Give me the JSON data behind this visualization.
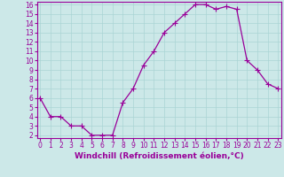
{
  "x": [
    0,
    1,
    2,
    3,
    4,
    5,
    6,
    7,
    8,
    9,
    10,
    11,
    12,
    13,
    14,
    15,
    16,
    17,
    18,
    19,
    20,
    21,
    22,
    23
  ],
  "y": [
    6,
    4,
    4,
    3,
    3,
    2,
    2,
    2,
    5.5,
    7,
    9.5,
    11,
    13,
    14,
    15,
    16,
    16,
    15.5,
    15.8,
    15.5,
    10,
    9,
    7.5,
    7
  ],
  "line_color": "#990099",
  "marker": "+",
  "marker_size": 4,
  "linewidth": 0.9,
  "xlabel": "Windchill (Refroidissement éolien,°C)",
  "xlabel_fontsize": 6.5,
  "ylim_min": 2,
  "ylim_max": 16,
  "xlim_min": 0,
  "xlim_max": 23,
  "yticks": [
    2,
    3,
    4,
    5,
    6,
    7,
    8,
    9,
    10,
    11,
    12,
    13,
    14,
    15,
    16
  ],
  "xticks": [
    0,
    1,
    2,
    3,
    4,
    5,
    6,
    7,
    8,
    9,
    10,
    11,
    12,
    13,
    14,
    15,
    16,
    17,
    18,
    19,
    20,
    21,
    22,
    23
  ],
  "tick_fontsize": 5.5,
  "grid_color": "#aad4d4",
  "bg_color": "#cce8e8",
  "spine_color": "#990099"
}
